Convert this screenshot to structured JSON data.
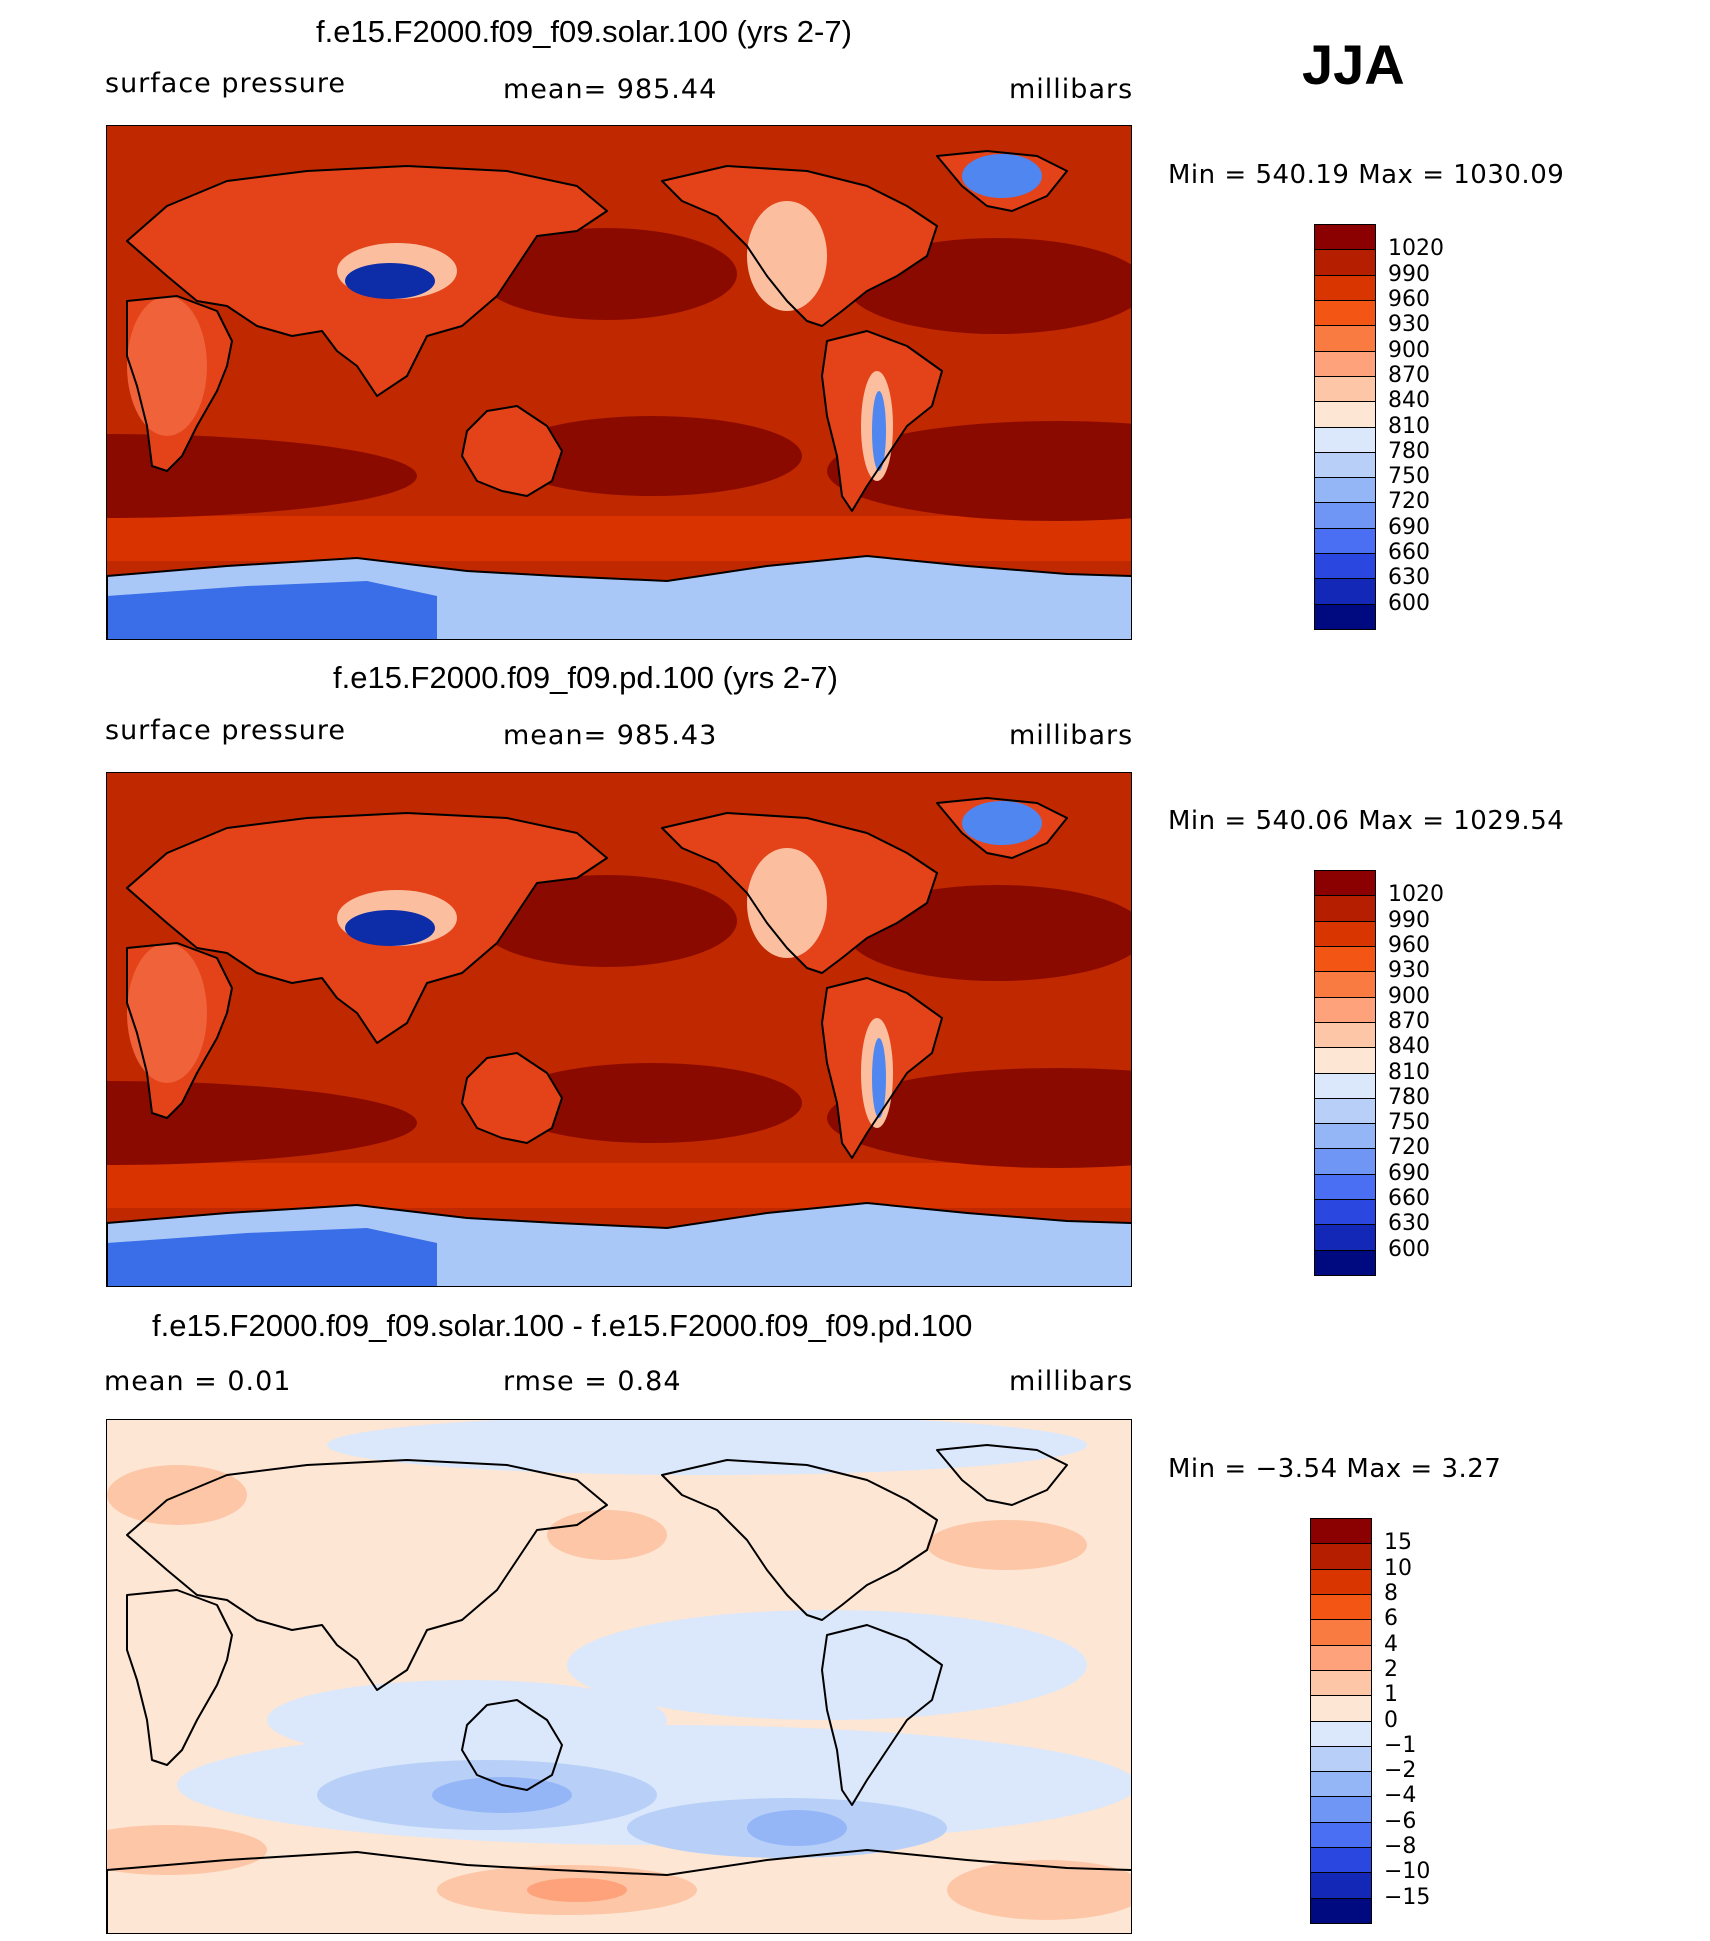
{
  "season": "JJA",
  "panels": [
    {
      "title": "f.e15.F2000.f09_f09.solar.100 (yrs 2-7)",
      "left_label": "surface pressure",
      "center_label": "mean= 985.44",
      "right_label": "millibars",
      "minmax": "Min  =  540.19  Max  =  1030.09",
      "colorbar": {
        "labels": [
          "1020",
          "990",
          "960",
          "930",
          "900",
          "870",
          "840",
          "810",
          "780",
          "750",
          "720",
          "690",
          "660",
          "630",
          "600"
        ],
        "colors": [
          "#8b0000",
          "#b51f00",
          "#d93500",
          "#f25514",
          "#fa7b42",
          "#fda27a",
          "#fdc6a6",
          "#fde6d4",
          "#dbe8fb",
          "#b8d0f8",
          "#94b6f7",
          "#6f95f5",
          "#4a6ff2",
          "#2a48e0",
          "#1428b8",
          "#000a80"
        ]
      },
      "map": {
        "base": "#c02800",
        "highs": "#8b0a00",
        "land": "#e4431a",
        "land_hot": "#f0623a",
        "highland": "#fbbfa0",
        "plateau_low": "#0c2ca8",
        "plateau_mid": "#4f86f0",
        "ice": "#3a6de8",
        "ice_edge": "#a9c8f7",
        "south_belt": "#d93400"
      }
    },
    {
      "title": "f.e15.F2000.f09_f09.pd.100 (yrs 2-7)",
      "left_label": "surface pressure",
      "center_label": "mean= 985.43",
      "right_label": "millibars",
      "minmax": "Min  =  540.06  Max  =  1029.54",
      "colorbar": {
        "labels": [
          "1020",
          "990",
          "960",
          "930",
          "900",
          "870",
          "840",
          "810",
          "780",
          "750",
          "720",
          "690",
          "660",
          "630",
          "600"
        ],
        "colors": [
          "#8b0000",
          "#b51f00",
          "#d93500",
          "#f25514",
          "#fa7b42",
          "#fda27a",
          "#fdc6a6",
          "#fde6d4",
          "#dbe8fb",
          "#b8d0f8",
          "#94b6f7",
          "#6f95f5",
          "#4a6ff2",
          "#2a48e0",
          "#1428b8",
          "#000a80"
        ]
      },
      "map": {
        "base": "#c02800",
        "highs": "#8b0a00",
        "land": "#e4431a",
        "land_hot": "#f0623a",
        "highland": "#fbbfa0",
        "plateau_low": "#0c2ca8",
        "plateau_mid": "#4f86f0",
        "ice": "#3a6de8",
        "ice_edge": "#a9c8f7",
        "south_belt": "#d93400"
      }
    },
    {
      "title": "f.e15.F2000.f09_f09.solar.100 - f.e15.F2000.f09_f09.pd.100",
      "left_label": "mean  =     0.01",
      "center_label": "rmse  =     0.84",
      "right_label": "millibars",
      "minmax": "Min  =   −3.54  Max  =      3.27",
      "colorbar": {
        "labels": [
          "15",
          "10",
          "8",
          "6",
          "4",
          "2",
          "1",
          "0",
          "−1",
          "−2",
          "−4",
          "−6",
          "−8",
          "−10",
          "−15"
        ],
        "colors": [
          "#8b0000",
          "#b51f00",
          "#d93500",
          "#f25514",
          "#fa7b42",
          "#fda27a",
          "#fdc6a6",
          "#fde6d4",
          "#dbe8fb",
          "#b8d0f8",
          "#94b6f7",
          "#6f95f5",
          "#4a6ff2",
          "#2a48e0",
          "#1428b8",
          "#000a80"
        ]
      },
      "map": {
        "base": "#fde6d4",
        "neg": "#dbe8fb",
        "neg2": "#b8d0f8",
        "neg3": "#94b6f7",
        "pos": "#fdc6a6",
        "pos2": "#fda27a"
      }
    }
  ]
}
